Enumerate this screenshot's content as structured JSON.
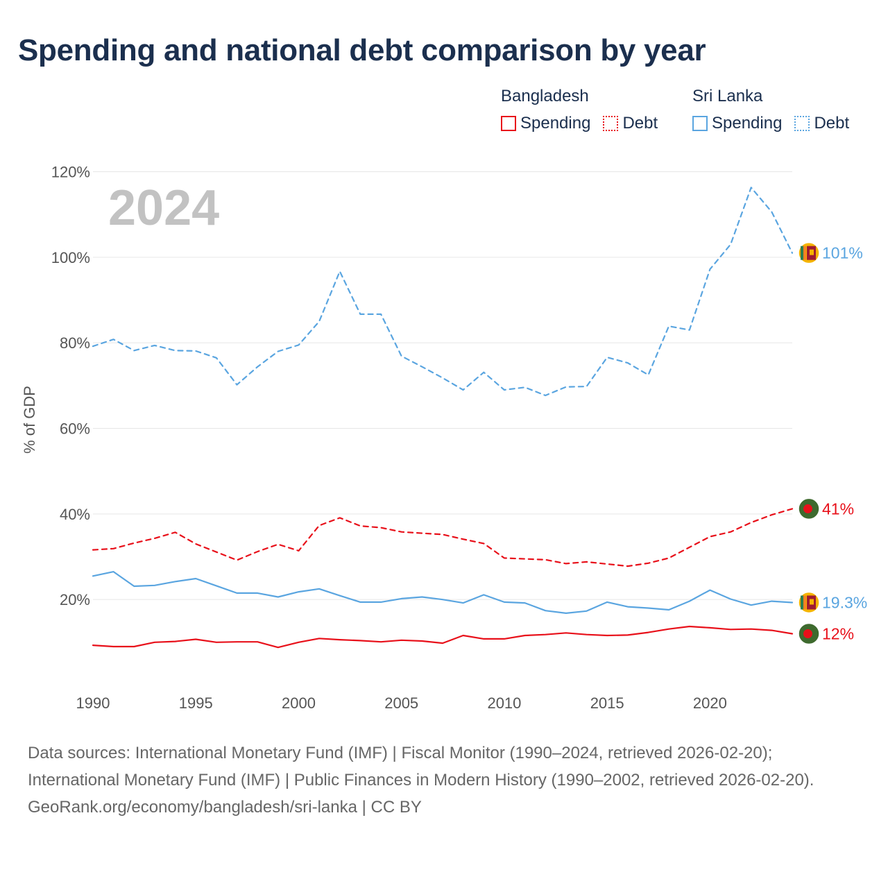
{
  "chart_data": {
    "type": "line",
    "title": "Spending and national debt comparison by year",
    "year_label": "2024",
    "ylabel": "% of GDP",
    "xlabel": "",
    "xlim": [
      1990,
      2024
    ],
    "ylim": [
      0,
      120
    ],
    "y_ticks": [
      20,
      40,
      60,
      80,
      100,
      120
    ],
    "y_tick_labels": [
      "20%",
      "40%",
      "60%",
      "80%",
      "100%",
      "120%"
    ],
    "x_ticks": [
      1990,
      1995,
      2000,
      2005,
      2010,
      2015,
      2020
    ],
    "x_tick_labels": [
      "1990",
      "1995",
      "2000",
      "2005",
      "2010",
      "2015",
      "2020"
    ],
    "grid": true,
    "legend_position": "top-right",
    "legend": [
      {
        "country": "Bangladesh",
        "spending_label": "Spending",
        "debt_label": "Debt",
        "color": "#e8101a"
      },
      {
        "country": "Sri Lanka",
        "spending_label": "Spending",
        "debt_label": "Debt",
        "color": "#5aa5e0"
      }
    ],
    "x": [
      1990,
      1991,
      1992,
      1993,
      1994,
      1995,
      1996,
      1997,
      1998,
      1999,
      2000,
      2001,
      2002,
      2003,
      2004,
      2005,
      2006,
      2007,
      2008,
      2009,
      2010,
      2011,
      2012,
      2013,
      2014,
      2015,
      2016,
      2017,
      2018,
      2019,
      2020,
      2021,
      2022,
      2023,
      2024
    ],
    "series": [
      {
        "name": "Sri Lanka Debt",
        "country": "Sri Lanka",
        "kind": "Debt",
        "color": "#5aa5e0",
        "dashed": true,
        "end_label": "101%",
        "values": [
          79.2,
          80.8,
          78.2,
          79.4,
          78.2,
          78.1,
          76.5,
          70.2,
          74.4,
          78.0,
          79.5,
          85.0,
          96.7,
          86.7,
          86.7,
          76.9,
          74.4,
          71.8,
          69.0,
          73.1,
          69.0,
          69.6,
          67.7,
          69.7,
          69.8,
          76.6,
          75.3,
          72.5,
          83.9,
          83.0,
          97.2,
          103.0,
          116.3,
          110.6,
          101.0
        ]
      },
      {
        "name": "Bangladesh Debt",
        "country": "Bangladesh",
        "kind": "Debt",
        "color": "#e8101a",
        "dashed": true,
        "end_label": "41%",
        "values": [
          31.6,
          31.9,
          33.2,
          34.3,
          35.7,
          33.0,
          31.1,
          29.2,
          31.2,
          32.9,
          31.4,
          37.3,
          39.1,
          37.2,
          36.8,
          35.8,
          35.5,
          35.2,
          34.1,
          33.1,
          29.7,
          29.5,
          29.3,
          28.4,
          28.8,
          28.3,
          27.8,
          28.5,
          29.7,
          32.2,
          34.7,
          35.8,
          38.0,
          39.8,
          41.2
        ]
      },
      {
        "name": "Sri Lanka Spending",
        "country": "Sri Lanka",
        "kind": "Spending",
        "color": "#5aa5e0",
        "dashed": false,
        "end_label": "19.3%",
        "values": [
          25.5,
          26.5,
          23.1,
          23.3,
          24.2,
          24.9,
          23.2,
          21.5,
          21.5,
          20.6,
          21.8,
          22.5,
          20.9,
          19.4,
          19.4,
          20.2,
          20.6,
          20.0,
          19.2,
          21.1,
          19.4,
          19.2,
          17.4,
          16.8,
          17.3,
          19.4,
          18.3,
          18.0,
          17.6,
          19.6,
          22.2,
          20.1,
          18.7,
          19.6,
          19.3
        ]
      },
      {
        "name": "Bangladesh Spending",
        "country": "Bangladesh",
        "kind": "Spending",
        "color": "#e8101a",
        "dashed": false,
        "end_label": "12%",
        "values": [
          9.3,
          9.0,
          9.0,
          10.0,
          10.2,
          10.7,
          10.0,
          10.1,
          10.1,
          8.8,
          10.0,
          10.9,
          10.6,
          10.4,
          10.1,
          10.5,
          10.3,
          9.8,
          11.6,
          10.8,
          10.8,
          11.6,
          11.8,
          12.2,
          11.8,
          11.6,
          11.7,
          12.3,
          13.1,
          13.7,
          13.4,
          13.0,
          13.1,
          12.8,
          12.0
        ]
      }
    ]
  },
  "footer": {
    "sources": "Data sources: International Monetary Fund (IMF) | Fiscal Monitor (1990–2024, retrieved 2026-02-20); International Monetary Fund (IMF) | Public Finances in Modern History (1990–2002, retrieved 2026-02-20).",
    "credit": "GeoRank.org/economy/bangladesh/sri-lanka | CC BY"
  },
  "flags": {
    "bangladesh": {
      "name": "bangladesh-flag-icon",
      "field": "#3e6a2e",
      "disc": "#e8101a"
    },
    "sri_lanka": {
      "name": "sri-lanka-flag-icon",
      "field": "#9e1b32",
      "border": "#f5b400",
      "stripe_green": "#2e7d4f",
      "stripe_orange": "#f58220"
    }
  }
}
